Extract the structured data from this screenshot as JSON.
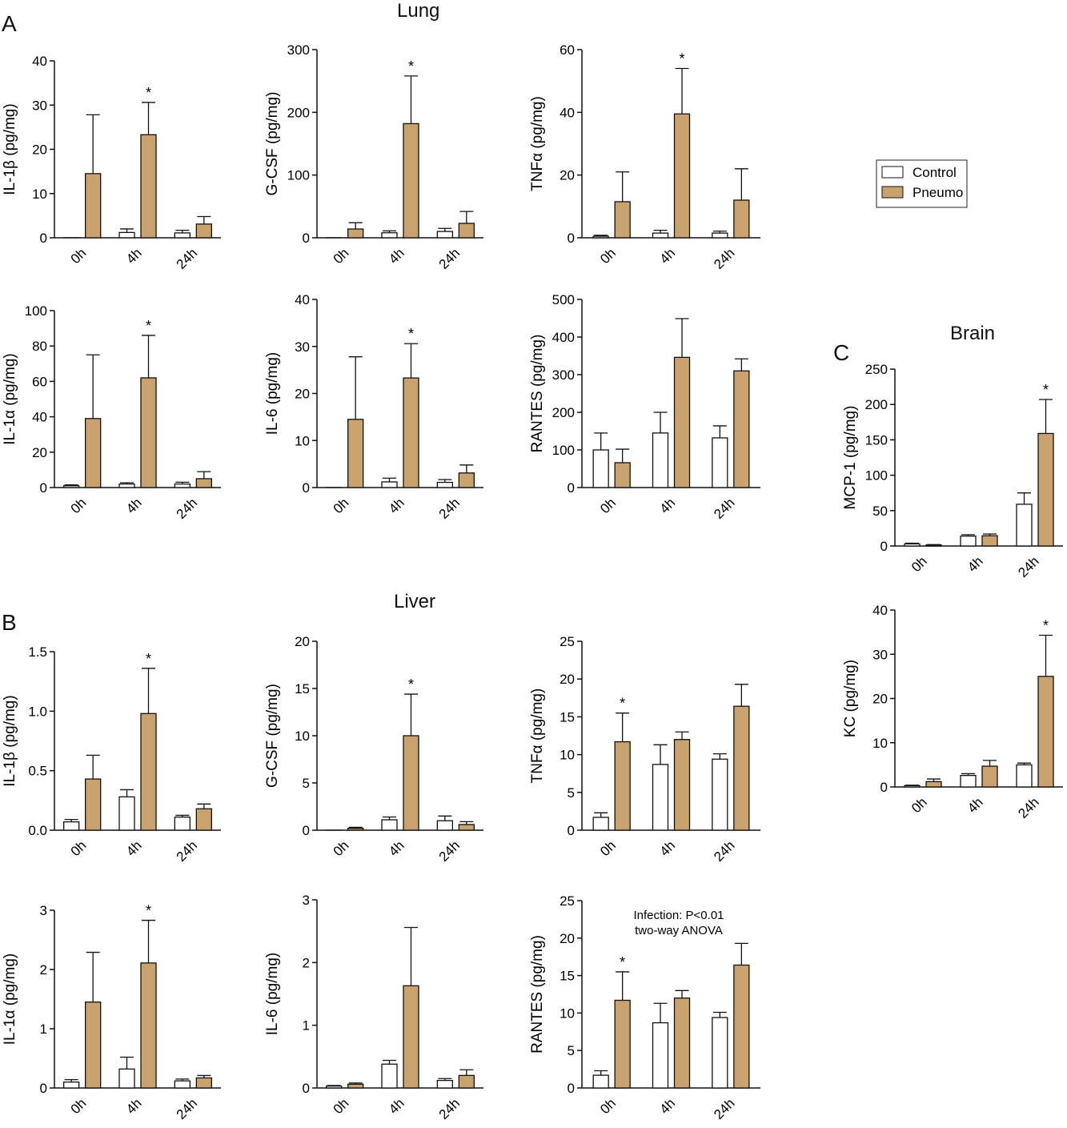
{
  "panel_letters": [
    "A",
    "B",
    "C"
  ],
  "section_titles": {
    "lung": "Lung",
    "liver": "Liver",
    "brain": "Brain"
  },
  "legend": {
    "control": "Control",
    "pneumo": "Pneumo"
  },
  "colors": {
    "control": "#ffffff",
    "pneumo": "#c9a26e",
    "ink": "#111111"
  },
  "chart_data": [
    {
      "id": "lung-il1b",
      "type": "bar",
      "section": "A",
      "ylabel": "IL-1β (pg/mg)",
      "ylim": [
        0,
        40
      ],
      "ticks": [
        0,
        10,
        20,
        30,
        40
      ],
      "tick_labels": [
        "0",
        "10",
        "20",
        "30",
        "40"
      ],
      "categories": [
        "0h",
        "4h",
        "24h"
      ],
      "series": [
        {
          "name": "Control",
          "values": [
            0,
            1.2,
            1.1
          ],
          "errors": [
            0,
            0.8,
            0.6
          ]
        },
        {
          "name": "Pneumo",
          "values": [
            14.5,
            23.3,
            3.1
          ],
          "errors": [
            13.3,
            7.3,
            1.7
          ]
        }
      ],
      "significance": [
        {
          "category": "4h",
          "label": "*"
        }
      ]
    },
    {
      "id": "lung-gcsf",
      "type": "bar",
      "section": "A",
      "ylabel": "G-CSF (pg/mg)",
      "ylim": [
        0,
        300
      ],
      "ticks": [
        0,
        100,
        200,
        300
      ],
      "tick_labels": [
        "0",
        "100",
        "200",
        "300"
      ],
      "categories": [
        "0h",
        "4h",
        "24h"
      ],
      "series": [
        {
          "name": "Control",
          "values": [
            0,
            8,
            10
          ],
          "errors": [
            0,
            3,
            5
          ]
        },
        {
          "name": "Pneumo",
          "values": [
            14,
            182,
            23
          ],
          "errors": [
            10,
            76,
            19
          ]
        }
      ],
      "significance": [
        {
          "category": "4h",
          "label": "*"
        }
      ]
    },
    {
      "id": "lung-tnfa",
      "type": "bar",
      "section": "A",
      "ylabel": "TNFα (pg/mg)",
      "ylim": [
        0,
        60
      ],
      "ticks": [
        0,
        20,
        40,
        60
      ],
      "tick_labels": [
        "0",
        "20",
        "40",
        "60"
      ],
      "categories": [
        "0h",
        "4h",
        "24h"
      ],
      "series": [
        {
          "name": "Control",
          "values": [
            0.5,
            1.5,
            1.5
          ],
          "errors": [
            0.3,
            0.9,
            0.6
          ]
        },
        {
          "name": "Pneumo",
          "values": [
            11.5,
            39.5,
            12
          ],
          "errors": [
            9.5,
            14.5,
            10
          ]
        }
      ],
      "significance": [
        {
          "category": "4h",
          "label": "*"
        }
      ]
    },
    {
      "id": "lung-il1a",
      "type": "bar",
      "section": "A",
      "ylabel": "IL-1α (pg/mg)",
      "ylim": [
        0,
        100
      ],
      "ticks": [
        0,
        20,
        40,
        60,
        80,
        100
      ],
      "tick_labels": [
        "0",
        "20",
        "40",
        "60",
        "80",
        "100"
      ],
      "categories": [
        "0h",
        "4h",
        "24h"
      ],
      "series": [
        {
          "name": "Control",
          "values": [
            1,
            2,
            2
          ],
          "errors": [
            0.5,
            0.7,
            1
          ]
        },
        {
          "name": "Pneumo",
          "values": [
            39,
            62,
            5
          ],
          "errors": [
            36,
            24,
            4
          ]
        }
      ],
      "significance": [
        {
          "category": "4h",
          "label": "*"
        }
      ]
    },
    {
      "id": "lung-il6",
      "type": "bar",
      "section": "A",
      "ylabel": "IL-6 (pg/mg)",
      "ylim": [
        0,
        40
      ],
      "ticks": [
        0,
        10,
        20,
        30,
        40
      ],
      "tick_labels": [
        "0",
        "10",
        "20",
        "30",
        "40"
      ],
      "categories": [
        "0h",
        "4h",
        "24h"
      ],
      "series": [
        {
          "name": "Control",
          "values": [
            0,
            1.2,
            1.1
          ],
          "errors": [
            0,
            0.8,
            0.6
          ]
        },
        {
          "name": "Pneumo",
          "values": [
            14.5,
            23.3,
            3.1
          ],
          "errors": [
            13.3,
            7.3,
            1.7
          ]
        }
      ],
      "significance": [
        {
          "category": "4h",
          "label": "*"
        }
      ]
    },
    {
      "id": "lung-rantes",
      "type": "bar",
      "section": "A",
      "ylabel": "RANTES (pg/mg)",
      "ylim": [
        0,
        500
      ],
      "ticks": [
        0,
        100,
        200,
        300,
        400,
        500
      ],
      "tick_labels": [
        "0",
        "100",
        "200",
        "300",
        "400",
        "500"
      ],
      "categories": [
        "0h",
        "4h",
        "24h"
      ],
      "series": [
        {
          "name": "Control",
          "values": [
            100,
            145,
            132
          ],
          "errors": [
            45,
            55,
            32
          ]
        },
        {
          "name": "Pneumo",
          "values": [
            66,
            346,
            310
          ],
          "errors": [
            36,
            103,
            32
          ]
        }
      ],
      "significance": []
    },
    {
      "id": "liver-il1b",
      "type": "bar",
      "section": "B",
      "ylabel": "IL-1β (pg/mg)",
      "ylim": [
        0,
        1.5
      ],
      "ticks": [
        0,
        0.5,
        1,
        1.5
      ],
      "tick_labels": [
        "0.0",
        "0.5",
        "1.0",
        "1.5"
      ],
      "categories": [
        "0h",
        "4h",
        "24h"
      ],
      "series": [
        {
          "name": "Control",
          "values": [
            0.07,
            0.28,
            0.11
          ],
          "errors": [
            0.02,
            0.06,
            0.015
          ]
        },
        {
          "name": "Pneumo",
          "values": [
            0.43,
            0.98,
            0.18
          ],
          "errors": [
            0.2,
            0.38,
            0.04
          ]
        }
      ],
      "significance": [
        {
          "category": "4h",
          "label": "*"
        }
      ]
    },
    {
      "id": "liver-gcsf",
      "type": "bar",
      "section": "B",
      "ylabel": "G-CSF (pg/mg)",
      "ylim": [
        0,
        20
      ],
      "ticks": [
        0,
        5,
        10,
        15,
        20
      ],
      "tick_labels": [
        "0",
        "5",
        "10",
        "15",
        "20"
      ],
      "categories": [
        "0h",
        "4h",
        "24h"
      ],
      "series": [
        {
          "name": "Control",
          "values": [
            0,
            1.1,
            1
          ],
          "errors": [
            0,
            0.3,
            0.5
          ]
        },
        {
          "name": "Pneumo",
          "values": [
            0.2,
            10,
            0.6
          ],
          "errors": [
            0.1,
            4.4,
            0.3
          ]
        }
      ],
      "significance": [
        {
          "category": "4h",
          "label": "*"
        }
      ]
    },
    {
      "id": "liver-tnfa",
      "type": "bar",
      "section": "B",
      "ylabel": "TNFα (pg/mg)",
      "ylim": [
        0,
        25
      ],
      "ticks": [
        0,
        5,
        10,
        15,
        20,
        25
      ],
      "tick_labels": [
        "0",
        "5",
        "10",
        "15",
        "20",
        "25"
      ],
      "categories": [
        "0h",
        "4h",
        "24h"
      ],
      "series": [
        {
          "name": "Control",
          "values": [
            1.7,
            8.7,
            9.4
          ],
          "errors": [
            0.6,
            2.6,
            0.7
          ]
        },
        {
          "name": "Pneumo",
          "values": [
            11.7,
            12,
            16.4
          ],
          "errors": [
            3.8,
            1,
            2.9
          ]
        }
      ],
      "significance": [
        {
          "category": "0h",
          "label": "*"
        }
      ]
    },
    {
      "id": "liver-il1a",
      "type": "bar",
      "section": "B",
      "ylabel": "IL-1α (pg/mg)",
      "ylim": [
        0,
        3
      ],
      "ticks": [
        0,
        1,
        2,
        3
      ],
      "tick_labels": [
        "0",
        "1",
        "2",
        "3"
      ],
      "categories": [
        "0h",
        "4h",
        "24h"
      ],
      "series": [
        {
          "name": "Control",
          "values": [
            0.1,
            0.32,
            0.12
          ],
          "errors": [
            0.04,
            0.2,
            0.03
          ]
        },
        {
          "name": "Pneumo",
          "values": [
            1.45,
            2.11,
            0.17
          ],
          "errors": [
            0.84,
            0.72,
            0.04
          ]
        }
      ],
      "significance": [
        {
          "category": "4h",
          "label": "*"
        }
      ]
    },
    {
      "id": "liver-il6",
      "type": "bar",
      "section": "B",
      "ylabel": "IL-6 (pg/mg)",
      "ylim": [
        0,
        3
      ],
      "ticks": [
        0,
        1,
        2,
        3
      ],
      "tick_labels": [
        "0",
        "1",
        "2",
        "3"
      ],
      "categories": [
        "0h",
        "4h",
        "24h"
      ],
      "series": [
        {
          "name": "Control",
          "values": [
            0.03,
            0.38,
            0.12
          ],
          "errors": [
            0.01,
            0.06,
            0.03
          ]
        },
        {
          "name": "Pneumo",
          "values": [
            0.06,
            1.63,
            0.2
          ],
          "errors": [
            0.02,
            0.93,
            0.09
          ]
        }
      ],
      "significance": []
    },
    {
      "id": "liver-rantes",
      "type": "bar",
      "section": "B",
      "ylabel": "RANTES (pg/mg)",
      "ylim": [
        0,
        25
      ],
      "ticks": [
        0,
        5,
        10,
        15,
        20,
        25
      ],
      "tick_labels": [
        "0",
        "5",
        "10",
        "15",
        "20",
        "25"
      ],
      "categories": [
        "0h",
        "4h",
        "24h"
      ],
      "series": [
        {
          "name": "Control",
          "values": [
            1.7,
            8.7,
            9.4
          ],
          "errors": [
            0.6,
            2.6,
            0.7
          ]
        },
        {
          "name": "Pneumo",
          "values": [
            11.7,
            12,
            16.4
          ],
          "errors": [
            3.8,
            1,
            2.9
          ]
        }
      ],
      "significance": [
        {
          "category": "0h",
          "label": "*"
        }
      ],
      "annotation": [
        "Infection: P<0.01",
        "two-way ANOVA"
      ]
    },
    {
      "id": "brain-mcp1",
      "type": "bar",
      "section": "C",
      "ylabel": "MCP-1 (pg/mg)",
      "ylim": [
        0,
        250
      ],
      "ticks": [
        0,
        50,
        100,
        150,
        200,
        250
      ],
      "tick_labels": [
        "0",
        "50",
        "100",
        "150",
        "200",
        "250"
      ],
      "categories": [
        "0h",
        "4h",
        "24h"
      ],
      "series": [
        {
          "name": "Control",
          "values": [
            3,
            14,
            59
          ],
          "errors": [
            1,
            2,
            16
          ]
        },
        {
          "name": "Pneumo",
          "values": [
            1.5,
            14.5,
            159
          ],
          "errors": [
            0.5,
            2.5,
            48
          ]
        }
      ],
      "significance": [
        {
          "category": "24h",
          "label": "*"
        }
      ]
    },
    {
      "id": "brain-kc",
      "type": "bar",
      "section": "C",
      "ylabel": "KC (pg/mg)",
      "ylim": [
        0,
        40
      ],
      "ticks": [
        0,
        10,
        20,
        30,
        40
      ],
      "tick_labels": [
        "0",
        "10",
        "20",
        "30",
        "40"
      ],
      "categories": [
        "0h",
        "4h",
        "24h"
      ],
      "series": [
        {
          "name": "Control",
          "values": [
            0.3,
            2.6,
            5
          ],
          "errors": [
            0.1,
            0.4,
            0.4
          ]
        },
        {
          "name": "Pneumo",
          "values": [
            1.2,
            4.7,
            25
          ],
          "errors": [
            0.6,
            1.3,
            9.3
          ]
        }
      ],
      "significance": [
        {
          "category": "24h",
          "label": "*"
        }
      ]
    }
  ]
}
